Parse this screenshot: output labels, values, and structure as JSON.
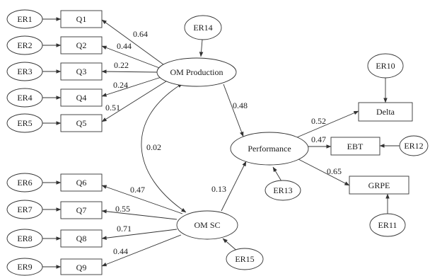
{
  "nodes": {
    "er1": {
      "label": "ER1"
    },
    "er2": {
      "label": "ER2"
    },
    "er3": {
      "label": "ER3"
    },
    "er4": {
      "label": "ER4"
    },
    "er5": {
      "label": "ER5"
    },
    "er6": {
      "label": "ER6"
    },
    "er7": {
      "label": "ER7"
    },
    "er8": {
      "label": "ER8"
    },
    "er9": {
      "label": "ER9"
    },
    "er10": {
      "label": "ER10"
    },
    "er11": {
      "label": "ER11"
    },
    "er12": {
      "label": "ER12"
    },
    "er13": {
      "label": "ER13"
    },
    "er14": {
      "label": "ER14"
    },
    "er15": {
      "label": "ER15"
    },
    "q1": {
      "label": "Q1"
    },
    "q2": {
      "label": "Q2"
    },
    "q3": {
      "label": "Q3"
    },
    "q4": {
      "label": "Q4"
    },
    "q5": {
      "label": "Q5"
    },
    "q6": {
      "label": "Q6"
    },
    "q7": {
      "label": "Q7"
    },
    "q8": {
      "label": "Q8"
    },
    "q9": {
      "label": "Q9"
    },
    "om_production": {
      "label": "OM Production"
    },
    "om_sc": {
      "label": "OM SC"
    },
    "performance": {
      "label": "Performance"
    },
    "delta": {
      "label": "Delta"
    },
    "ebt": {
      "label": "EBT"
    },
    "grpe": {
      "label": "GRPE"
    }
  },
  "edges": {
    "omp_q1": {
      "weight": "0.64"
    },
    "omp_q2": {
      "weight": "0.44"
    },
    "omp_q3": {
      "weight": "0.22"
    },
    "omp_q4": {
      "weight": "0.24"
    },
    "omp_q5": {
      "weight": "0.51"
    },
    "omsc_q6": {
      "weight": "0.47"
    },
    "omsc_q7": {
      "weight": "0.55"
    },
    "omsc_q8": {
      "weight": "0.71"
    },
    "omsc_q9": {
      "weight": "0.44"
    },
    "omp_perf": {
      "weight": "0.48"
    },
    "omsc_perf": {
      "weight": "0.13"
    },
    "omp_omsc": {
      "weight": "0.02"
    },
    "perf_delta": {
      "weight": "0.52"
    },
    "perf_ebt": {
      "weight": "0.47"
    },
    "perf_grpe": {
      "weight": "0.65"
    }
  }
}
